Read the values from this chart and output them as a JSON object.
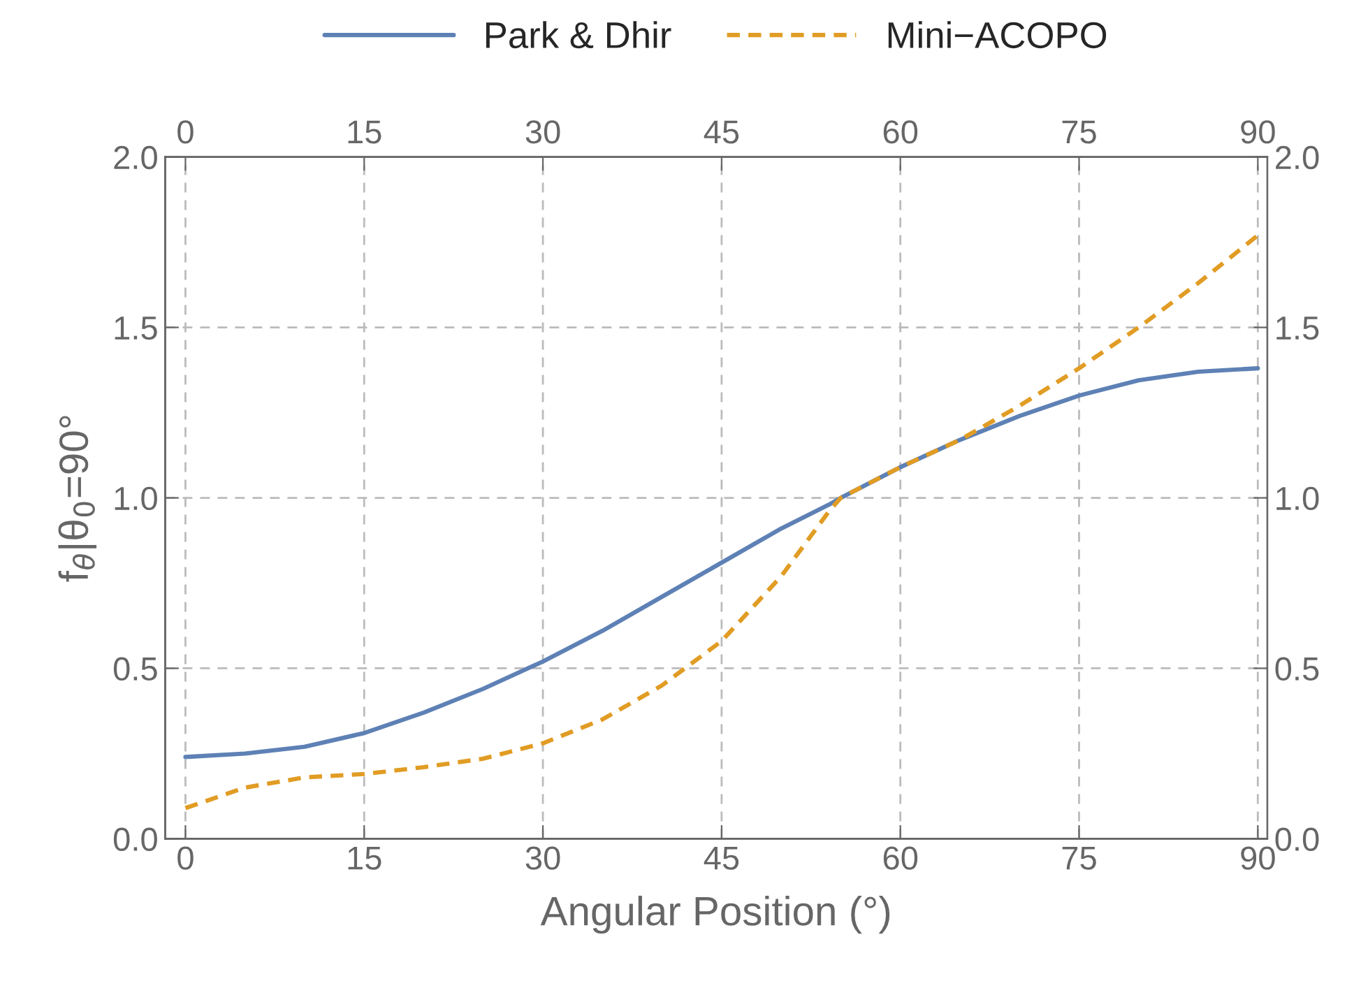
{
  "chart_data": {
    "type": "line",
    "xlabel": "Angular Position (°)",
    "ylabel": "f$_{θ}$|θ$_{0}$=90°",
    "x": [
      0,
      5,
      10,
      15,
      20,
      25,
      30,
      35,
      40,
      45,
      50,
      54,
      55,
      60,
      65,
      70,
      75,
      80,
      85,
      90
    ],
    "series": [
      {
        "name": "Park & Dhir",
        "color": "#5e81b5",
        "line_style": "solid",
        "values": [
          0.24,
          0.25,
          0.27,
          0.31,
          0.37,
          0.44,
          0.52,
          0.61,
          0.71,
          0.81,
          0.91,
          0.98,
          1.0,
          1.09,
          1.17,
          1.24,
          1.3,
          1.345,
          1.37,
          1.38
        ]
      },
      {
        "name": "Mini−ACOPO",
        "color": "#e19c24",
        "line_style": "dashed",
        "values": [
          0.09,
          0.15,
          0.18,
          0.19,
          0.21,
          0.235,
          0.28,
          0.35,
          0.45,
          0.58,
          0.77,
          0.96,
          1.0,
          1.09,
          1.17,
          1.27,
          1.38,
          1.5,
          1.63,
          1.77
        ]
      }
    ],
    "xlim": [
      -1.7,
      90.8
    ],
    "xticks": [
      0,
      15,
      30,
      45,
      60,
      75,
      90
    ],
    "x2lim": [
      -1.7,
      90.8
    ],
    "x2ticks": [
      0,
      15,
      30,
      45,
      60,
      75,
      90
    ],
    "ylim": [
      0,
      2.0
    ],
    "yticks": [
      {
        "value": 0,
        "label": "0.0"
      },
      0.5,
      {
        "value": 1,
        "label": "1.0"
      },
      1.5,
      {
        "value": 2,
        "label": "2.0"
      }
    ],
    "y2lim": [
      0,
      2.0
    ],
    "y2ticks": [
      {
        "value": 0,
        "label": "0.0"
      },
      0.5,
      {
        "value": 1,
        "label": "1.0"
      },
      1.5,
      {
        "value": 2,
        "label": "2.0"
      }
    ],
    "grid": true,
    "legend": "top",
    "marker": "none"
  }
}
